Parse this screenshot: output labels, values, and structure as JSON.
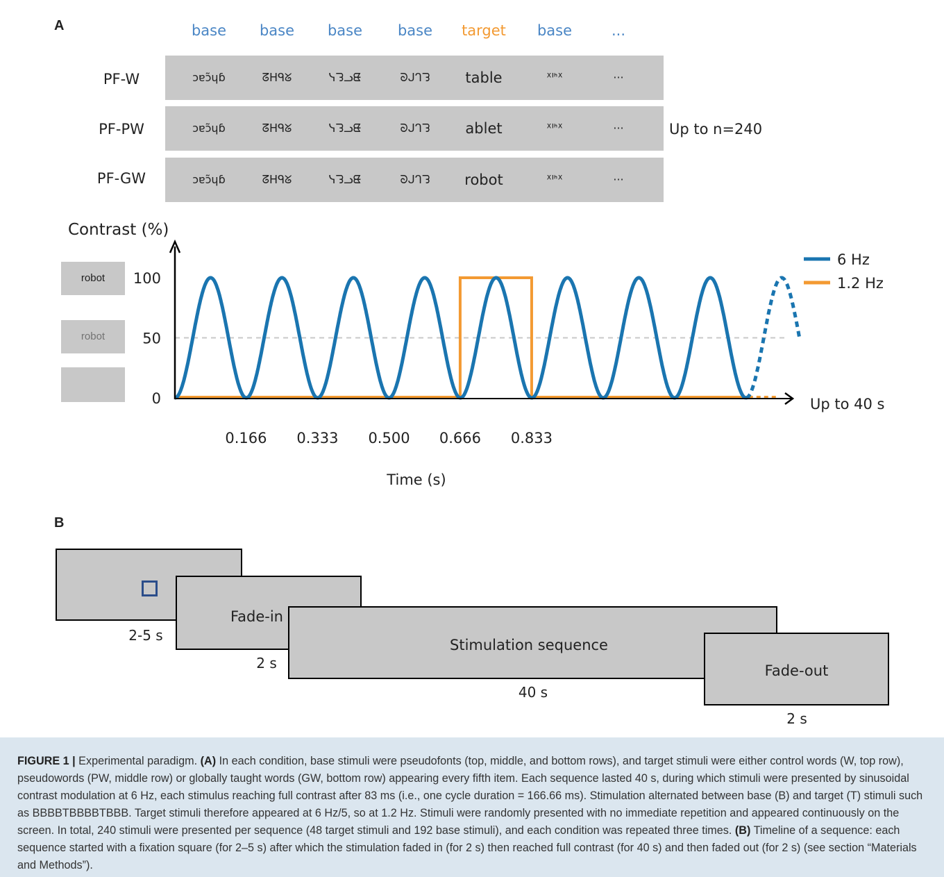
{
  "panel_a": {
    "letter": "A",
    "column_headers": [
      "base",
      "base",
      "base",
      "base",
      "target",
      "base",
      "..."
    ],
    "header_colors": {
      "base": "#4a86c5",
      "target": "#f39a32"
    },
    "rows": [
      {
        "label": "PF-W",
        "pseudofonts": [
          "ɔɐɔ̃ɥɓ",
          "ᘔᕼᑫᘜ",
          "ᓭᘊᓗᘀ",
          "ᘐᒍᒉᘊ"
        ],
        "target": "table",
        "after": "ᕁᑊᑋᕁ",
        "ellipsis": "···"
      },
      {
        "label": "PF-PW",
        "pseudofonts": [
          "ɔɐɔ̃ɥɓ",
          "ᘔᕼᑫᘜ",
          "ᓭᘊᓗᘀ",
          "ᘐᒍᒉᘊ"
        ],
        "target": "ablet",
        "after": "ᕁᑊᑋᕁ",
        "ellipsis": "···"
      },
      {
        "label": "PF-GW",
        "pseudofonts": [
          "ɔɐɔ̃ɥɓ",
          "ᘔᕼᑫᘜ",
          "ᓭᘊᓗᘀ",
          "ᘐᒍᒉᘊ"
        ],
        "target": "robot",
        "after": "ᕁᑊᑋᕁ",
        "ellipsis": "···"
      }
    ],
    "side_note": "Up to n=240",
    "contrast_swatches": [
      {
        "text": "robot",
        "level": 1.0
      },
      {
        "text": "robot",
        "level": 0.5
      },
      {
        "text": "",
        "level": 0
      }
    ]
  },
  "chart_data": {
    "type": "line",
    "ylabel": "Contrast (%)",
    "xlabel": "Time (s)",
    "x_axis_end_label": "Up to 40 s",
    "yticks": [
      0,
      50,
      100
    ],
    "xticks": [
      "0.166",
      "0.333",
      "0.500",
      "0.666",
      "0.833"
    ],
    "xtick_values": [
      0.166,
      0.333,
      0.5,
      0.666,
      0.833
    ],
    "xlim": [
      0,
      1.39
    ],
    "ylim": [
      0,
      110
    ],
    "reference_line_y": 50,
    "series": [
      {
        "name": "6 Hz",
        "color": "#1a75b0",
        "kind": "sinusoid",
        "frequency_hz": 6,
        "min": 0,
        "max": 100,
        "solid_cycles": 8,
        "dashed_continuation": true
      },
      {
        "name": "1.2 Hz",
        "color": "#f39a32",
        "kind": "square",
        "baseline": 0,
        "high": 100,
        "pulse_start": 0.666,
        "pulse_end": 0.833,
        "dashed_continuation": true
      }
    ],
    "legend_position": "top-right"
  },
  "panel_b": {
    "letter": "B",
    "blocks": [
      {
        "label": "",
        "duration": "2-5 s",
        "fixation_square": true
      },
      {
        "label": "Fade-in",
        "duration": "2 s"
      },
      {
        "label": "Stimulation sequence",
        "duration": "40 s"
      },
      {
        "label": "Fade-out",
        "duration": "2 s"
      }
    ]
  },
  "caption": {
    "figure_label": "FIGURE 1 |",
    "intro": " Experimental paradigm. ",
    "a_label": "(A)",
    "a_text": " In each condition, base stimuli were pseudofonts (top, middle, and bottom rows), and target stimuli were either control words (W, top row), pseudowords (PW, middle row) or globally taught words (GW, bottom row) appearing every fifth item. Each sequence lasted 40 s, during which stimuli were presented by sinusoidal contrast modulation at 6 Hz, each stimulus reaching full contrast after 83 ms (i.e., one cycle duration = 166.66 ms). Stimulation alternated between base (B) and target (T) stimuli such as BBBBTBBBBTBBB. Target stimuli therefore appeared at 6 Hz/5, so at 1.2 Hz. Stimuli were randomly presented with no immediate repetition and appeared continuously on the screen. In total, 240 stimuli were presented per sequence (48 target stimuli and 192 base stimuli), and each condition was repeated three times. ",
    "b_label": "(B)",
    "b_text": " Timeline of a sequence: each sequence started with a fixation square (for 2–5 s) after which the stimulation faded in (for 2 s) then reached full contrast (for 40 s) and then faded out (for 2 s) (see section “Materials and Methods”)."
  }
}
